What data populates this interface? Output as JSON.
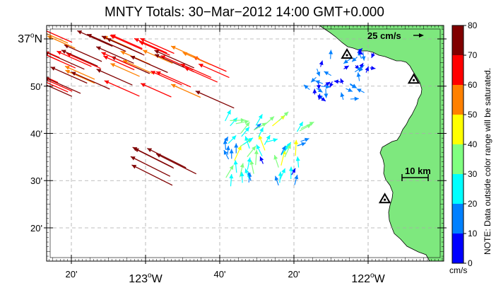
{
  "title": "MNTY Totals: 30−Mar−2012 14:00 GMT+0.000",
  "axes": {
    "y_labels": [
      {
        "text": "37°N",
        "main": "37",
        "deg": "o",
        "suffix": "N",
        "lat": 37.0,
        "major": true
      },
      {
        "text": "50'",
        "lat": 36.8333
      },
      {
        "text": "40'",
        "lat": 36.6667
      },
      {
        "text": "30'",
        "lat": 36.5
      },
      {
        "text": "20'",
        "lat": 36.3333
      }
    ],
    "x_labels": [
      {
        "text": "20'",
        "lon": -123.3333
      },
      {
        "text": "123°W",
        "main": "123",
        "deg": "o",
        "suffix": "W",
        "lon": -123.0,
        "major": true
      },
      {
        "text": "40'",
        "lon": -122.6667
      },
      {
        "text": "20'",
        "lon": -122.3333
      },
      {
        "text": "122°W",
        "main": "122",
        "deg": "o",
        "suffix": "W",
        "lon": -122.0,
        "major": true
      }
    ]
  },
  "scale_vector": {
    "label": "25 cm/s",
    "value_cm_s": 25
  },
  "scale_bar": {
    "label": "10 km",
    "length_km": 10
  },
  "colorbar": {
    "ticks": [
      "0",
      "10",
      "20",
      "30",
      "40",
      "50",
      "60",
      "70",
      "80"
    ],
    "unit": "cm/s",
    "note": "NOTE: Data outside color range will be saturated.",
    "colors": [
      "#0000ff",
      "#0080ff",
      "#00ffff",
      "#80ff80",
      "#ffff00",
      "#ff8000",
      "#ff0000",
      "#800000"
    ]
  },
  "colors": {
    "land": "#7ee87e",
    "coast": "#000000",
    "grid": "#aaaaaa"
  },
  "stations": [
    {
      "name": "station-north",
      "lon": -122.095,
      "lat": 36.945
    },
    {
      "name": "station-east",
      "lon": -121.795,
      "lat": 36.857
    },
    {
      "name": "station-south",
      "lon": -121.925,
      "lat": 36.435
    }
  ],
  "vector_fields": [
    {
      "region": "offshore-west-band",
      "lon": [
        -123.55,
        -122.75
      ],
      "lat": [
        36.85,
        37.05
      ],
      "speed_range_cm_s": [
        50,
        80
      ],
      "direction": "west-northwest"
    },
    {
      "region": "offshore-west-lower",
      "lon": [
        -123.15,
        -122.95
      ],
      "lat": [
        36.55,
        36.62
      ],
      "speed_range_cm_s": [
        65,
        80
      ],
      "direction": "west-northwest"
    },
    {
      "region": "central-patch",
      "lon": [
        -122.65,
        -122.3
      ],
      "lat": [
        36.48,
        36.72
      ],
      "speed_range_cm_s": [
        5,
        55
      ],
      "direction": "north-northwest to northeast"
    },
    {
      "region": "bay-patch",
      "lon": [
        -122.27,
        -121.95
      ],
      "lat": [
        36.78,
        36.96
      ],
      "speed_range_cm_s": [
        0,
        20
      ],
      "direction": "variable"
    }
  ]
}
